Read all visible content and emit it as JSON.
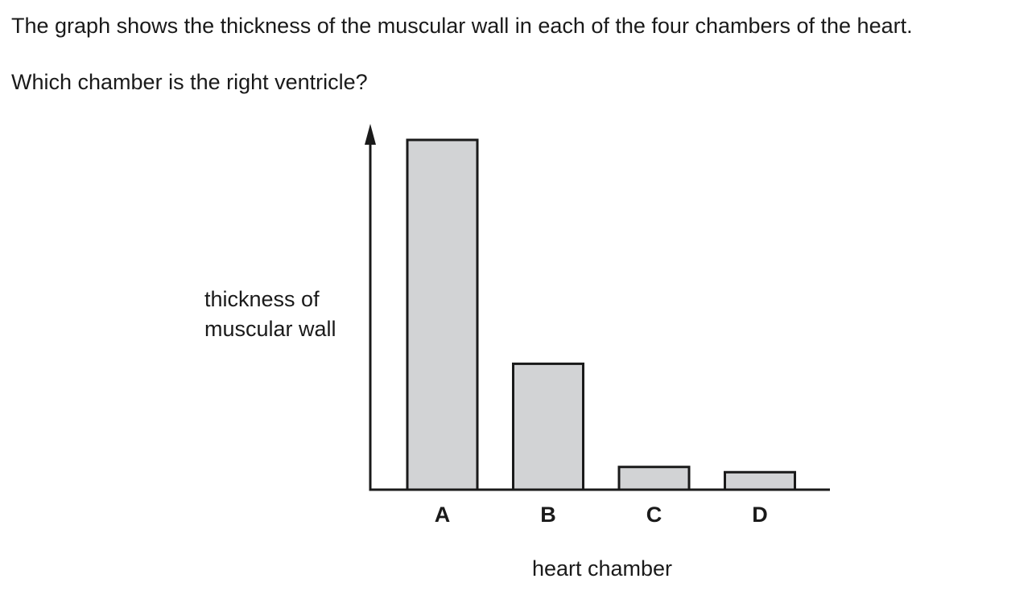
{
  "question": {
    "line1": "The graph shows the thickness of the muscular wall in each of the four chambers of the heart.",
    "line2": "Which chamber is the right ventricle?"
  },
  "chart_data": {
    "type": "bar",
    "categories": [
      "A",
      "B",
      "C",
      "D"
    ],
    "values": [
      100,
      36,
      6.5,
      5
    ],
    "ylim": [
      0,
      104
    ],
    "xlabel": "heart chamber",
    "ylabel_lines": [
      "thickness of",
      "muscular wall"
    ],
    "y_ticks_shown": false,
    "grid": false,
    "bar_fill": "#d2d3d5",
    "bar_stroke": "#1a1a1a",
    "axis_color": "#1a1a1a"
  }
}
